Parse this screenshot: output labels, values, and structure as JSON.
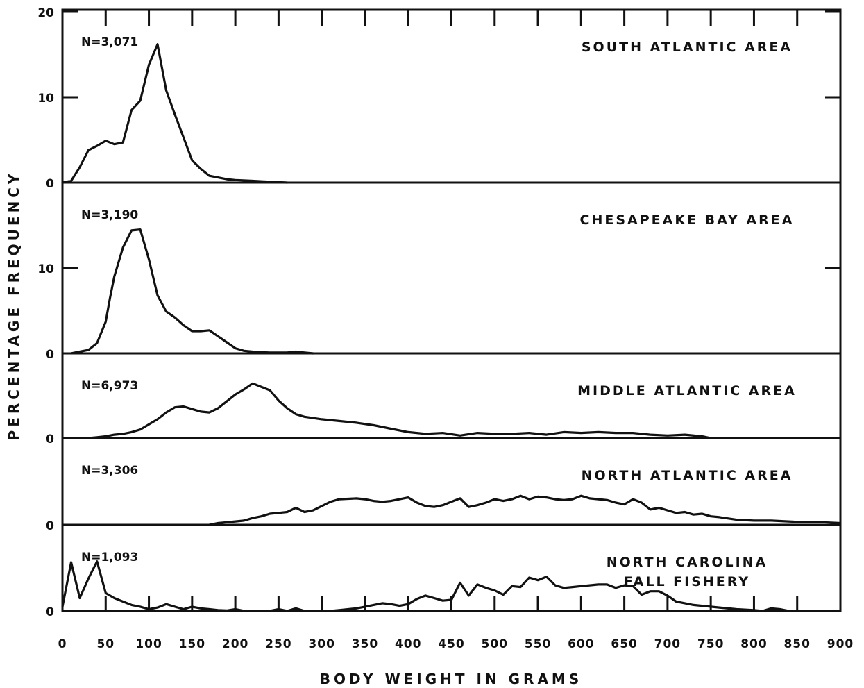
{
  "chart_data": {
    "type": "line",
    "xlabel": "BODY WEIGHT IN GRAMS",
    "ylabel": "PERCENTAGE FREQUENCY",
    "xlim": [
      0,
      900
    ],
    "x_ticks": [
      0,
      50,
      100,
      150,
      200,
      250,
      300,
      350,
      400,
      450,
      500,
      550,
      600,
      650,
      700,
      750,
      800,
      850,
      900
    ],
    "grid": false,
    "legend": "none",
    "panels": [
      {
        "title": [
          "SOUTH ATLANTIC AREA"
        ],
        "n_label": "N=3,071",
        "ylim": [
          0,
          20
        ],
        "y_ticks": [
          0,
          10,
          20
        ],
        "series": [
          {
            "x": [
              0,
              10,
              20,
              30,
              40,
              50,
              60,
              70,
              80,
              90,
              100,
              110,
              120,
              130,
              140,
              150,
              160,
              170,
              180,
              190,
              200,
              220,
              240,
              250,
              260
            ],
            "y": [
              0,
              0.2,
              1.8,
              3.8,
              4.3,
              4.9,
              4.5,
              4.7,
              8.5,
              9.6,
              13.8,
              16.2,
              10.8,
              8.0,
              5.3,
              2.6,
              1.6,
              0.8,
              0.6,
              0.4,
              0.3,
              0.2,
              0.1,
              0.05,
              0
            ]
          }
        ]
      },
      {
        "title": [
          "CHESAPEAKE BAY AREA"
        ],
        "n_label": "N=3,190",
        "ylim": [
          0,
          20
        ],
        "y_ticks": [
          0,
          10
        ],
        "series": [
          {
            "x": [
              10,
              20,
              30,
              40,
              50,
              55,
              60,
              70,
              80,
              90,
              100,
              110,
              120,
              130,
              140,
              150,
              160,
              170,
              180,
              190,
              200,
              210,
              220,
              230,
              240,
              250,
              260,
              270,
              280,
              290
            ],
            "y": [
              0,
              0.2,
              0.4,
              1.2,
              3.7,
              6.5,
              9.0,
              12.4,
              14.4,
              14.5,
              11.0,
              6.8,
              4.9,
              4.2,
              3.3,
              2.6,
              2.6,
              2.7,
              2.0,
              1.3,
              0.6,
              0.3,
              0.2,
              0.15,
              0.1,
              0.1,
              0.1,
              0.2,
              0.1,
              0
            ]
          }
        ]
      },
      {
        "title": [
          "MIDDLE ATLANTIC AREA"
        ],
        "n_label": "N=6,973",
        "ylim": [
          0,
          10
        ],
        "y_ticks": [
          0
        ],
        "series": [
          {
            "x": [
              30,
              40,
              50,
              60,
              70,
              80,
              90,
              100,
              110,
              120,
              130,
              140,
              150,
              160,
              170,
              180,
              190,
              200,
              210,
              220,
              230,
              240,
              250,
              260,
              270,
              280,
              300,
              320,
              340,
              360,
              380,
              400,
              420,
              440,
              460,
              480,
              500,
              520,
              540,
              560,
              580,
              600,
              620,
              640,
              660,
              680,
              700,
              720,
              740,
              750
            ],
            "y": [
              0,
              0.1,
              0.2,
              0.4,
              0.5,
              0.7,
              1.0,
              1.6,
              2.2,
              3.0,
              3.6,
              3.7,
              3.4,
              3.1,
              3.0,
              3.5,
              4.3,
              5.1,
              5.7,
              6.4,
              6.0,
              5.6,
              4.4,
              3.5,
              2.8,
              2.5,
              2.2,
              2.0,
              1.8,
              1.5,
              1.1,
              0.7,
              0.5,
              0.6,
              0.3,
              0.6,
              0.5,
              0.5,
              0.6,
              0.4,
              0.7,
              0.6,
              0.7,
              0.6,
              0.6,
              0.4,
              0.3,
              0.4,
              0.2,
              0
            ]
          }
        ]
      },
      {
        "title": [
          "NORTH ATLANTIC AREA"
        ],
        "n_label": "N=3,306",
        "ylim": [
          0,
          10
        ],
        "y_ticks": [
          0
        ],
        "series": [
          {
            "x": [
              170,
              180,
              190,
              200,
              210,
              220,
              230,
              240,
              250,
              260,
              270,
              280,
              290,
              300,
              310,
              320,
              340,
              350,
              360,
              370,
              380,
              390,
              400,
              410,
              420,
              430,
              440,
              450,
              460,
              470,
              480,
              490,
              500,
              510,
              520,
              530,
              540,
              550,
              560,
              570,
              580,
              590,
              600,
              610,
              620,
              630,
              640,
              650,
              660,
              670,
              680,
              690,
              700,
              710,
              720,
              730,
              740,
              750,
              760,
              780,
              800,
              820,
              840,
              860,
              880,
              900
            ],
            "y": [
              0,
              0.2,
              0.3,
              0.4,
              0.5,
              0.8,
              1.0,
              1.3,
              1.4,
              1.5,
              2.0,
              1.5,
              1.7,
              2.2,
              2.7,
              3.0,
              3.1,
              3.0,
              2.8,
              2.7,
              2.8,
              3.0,
              3.2,
              2.6,
              2.2,
              2.1,
              2.3,
              2.7,
              3.1,
              2.1,
              2.3,
              2.6,
              3.0,
              2.8,
              3.0,
              3.4,
              3.0,
              3.3,
              3.2,
              3.0,
              2.9,
              3.0,
              3.4,
              3.1,
              3.0,
              2.9,
              2.6,
              2.4,
              3.0,
              2.6,
              1.8,
              2.0,
              1.7,
              1.4,
              1.5,
              1.2,
              1.3,
              1.0,
              0.9,
              0.6,
              0.5,
              0.5,
              0.4,
              0.3,
              0.3,
              0.2
            ]
          }
        ]
      },
      {
        "title": [
          "NORTH CAROLINA",
          "FALL FISHERY"
        ],
        "n_label": "N=1,093",
        "ylim": [
          0,
          10
        ],
        "y_ticks": [
          0
        ],
        "series": [
          {
            "x": [
              0,
              10,
              20,
              30,
              40,
              50,
              60,
              70,
              80,
              90,
              100,
              110,
              120,
              130,
              140,
              150,
              160,
              170,
              180,
              190,
              200,
              210,
              220,
              240,
              250,
              260,
              270,
              280,
              290,
              300,
              310,
              320,
              340,
              350,
              360,
              370,
              380,
              390,
              400,
              410,
              420,
              430,
              440,
              450,
              460,
              470,
              480,
              490,
              500,
              510,
              520,
              530,
              540,
              550,
              560,
              570,
              580,
              590,
              600,
              610,
              620,
              630,
              640,
              650,
              660,
              670,
              680,
              690,
              700,
              710,
              720,
              730,
              740,
              750,
              760,
              780,
              800,
              810,
              820,
              830,
              840
            ],
            "y": [
              0.5,
              5.7,
              1.5,
              3.8,
              5.8,
              2.1,
              1.5,
              1.1,
              0.7,
              0.5,
              0.2,
              0.4,
              0.8,
              0.5,
              0.2,
              0.5,
              0.3,
              0.2,
              0.1,
              0.05,
              0.2,
              0,
              0,
              0,
              0.2,
              0,
              0.3,
              0,
              0,
              0,
              0,
              0.1,
              0.3,
              0.5,
              0.7,
              0.9,
              0.8,
              0.6,
              0.8,
              1.4,
              1.8,
              1.5,
              1.2,
              1.3,
              3.3,
              1.8,
              3.1,
              2.7,
              2.4,
              1.9,
              2.9,
              2.8,
              3.9,
              3.6,
              4.0,
              3.0,
              2.7,
              2.8,
              2.9,
              3.0,
              3.1,
              3.1,
              2.7,
              3.0,
              2.9,
              1.9,
              2.3,
              2.3,
              1.8,
              1.1,
              0.9,
              0.7,
              0.6,
              0.5,
              0.4,
              0.2,
              0.1,
              0,
              0.3,
              0.2,
              0
            ]
          }
        ]
      }
    ]
  }
}
